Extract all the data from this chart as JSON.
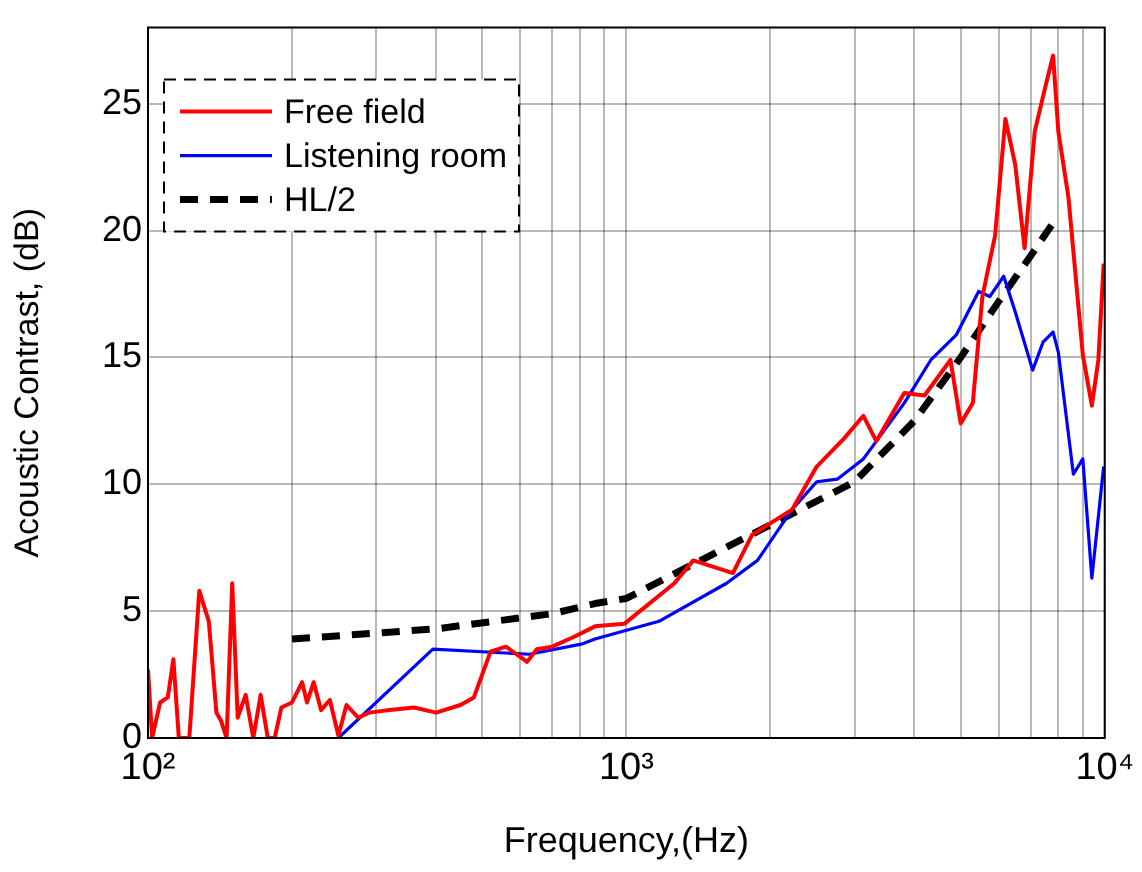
{
  "chart_data": {
    "type": "line",
    "xlabel": "Frequency,(Hz)",
    "ylabel": "Acoustic Contrast, (dB)",
    "log": "x",
    "grid": true,
    "legend": "top left",
    "xlim": [
      100,
      10000
    ],
    "xticks": [
      {
        "value": 100,
        "label": "10²"
      },
      {
        "value": 1000,
        "label": "10³"
      },
      {
        "value": 10000,
        "label": "10⁴"
      }
    ],
    "ylim": [
      0,
      28
    ],
    "yticks": [
      0,
      5,
      10,
      15,
      20,
      25
    ],
    "series": [
      {
        "name": "Free field",
        "color": "#ff0000",
        "line_style": "solid",
        "x": [
          100,
          102,
          106,
          110,
          113,
          116,
          122,
          128,
          134,
          139,
          142,
          146,
          150,
          154,
          160,
          166,
          172,
          178,
          184,
          190,
          200,
          210,
          215,
          222,
          230,
          240,
          250,
          260,
          275,
          290,
          320,
          360,
          400,
          450,
          480,
          520,
          560,
          600,
          620,
          650,
          700,
          780,
          860,
          990,
          1260,
          1380,
          1670,
          1830,
          2220,
          2500,
          2850,
          3130,
          3330,
          3810,
          4200,
          4760,
          5000,
          5300,
          5550,
          5900,
          6200,
          6500,
          6800,
          7140,
          7500,
          7800,
          8000,
          8400,
          9000,
          9400,
          9700,
          9950
        ],
        "values": [
          2.7,
          0,
          1.4,
          1.6,
          3.1,
          0,
          0,
          5.8,
          4.6,
          1.0,
          0.7,
          0,
          6.1,
          0.8,
          1.7,
          0,
          1.7,
          0,
          0,
          1.2,
          1.4,
          2.2,
          1.4,
          2.2,
          1.1,
          1.5,
          0.1,
          1.3,
          0.8,
          1.0,
          1.1,
          1.2,
          1.0,
          1.3,
          1.6,
          3.4,
          3.6,
          3.2,
          3.0,
          3.5,
          3.6,
          4.0,
          4.4,
          4.5,
          6.1,
          7.0,
          6.5,
          8.0,
          9.0,
          10.7,
          11.8,
          12.7,
          11.7,
          13.6,
          13.5,
          14.9,
          12.4,
          13.2,
          17.4,
          19.8,
          24.4,
          22.6,
          19.3,
          23.9,
          25.6,
          26.9,
          23.9,
          21.3,
          15.1,
          13.1,
          14.9,
          18.7
        ]
      },
      {
        "name": "Listening room",
        "color": "#0000ff",
        "line_style": "solid",
        "x": [
          250,
          394,
          627,
          805,
          860,
          1170,
          1620,
          1880,
          2220,
          2500,
          2760,
          3130,
          3810,
          4330,
          4900,
          5450,
          5750,
          6150,
          6500,
          7070,
          7430,
          7800,
          8000,
          8600,
          9000,
          9400,
          9950
        ],
        "values": [
          0,
          3.5,
          3.3,
          3.7,
          3.9,
          4.6,
          6.1,
          7.0,
          9.0,
          10.1,
          10.2,
          11.0,
          13.2,
          14.9,
          15.9,
          17.6,
          17.4,
          18.2,
          16.8,
          14.5,
          15.6,
          16.0,
          15.2,
          10.4,
          11.0,
          6.3,
          10.7
        ]
      },
      {
        "name": "HL/2",
        "color": "#000000",
        "line_style": "dashed",
        "x": [
          200,
          400,
          700,
          860,
          1000,
          1500,
          2000,
          3000,
          4000,
          5000,
          6000,
          7000,
          7800
        ],
        "values": [
          3.9,
          4.3,
          4.9,
          5.3,
          5.5,
          7.2,
          8.4,
          10.1,
          12.5,
          15.0,
          17.2,
          19.0,
          20.3
        ]
      }
    ]
  }
}
